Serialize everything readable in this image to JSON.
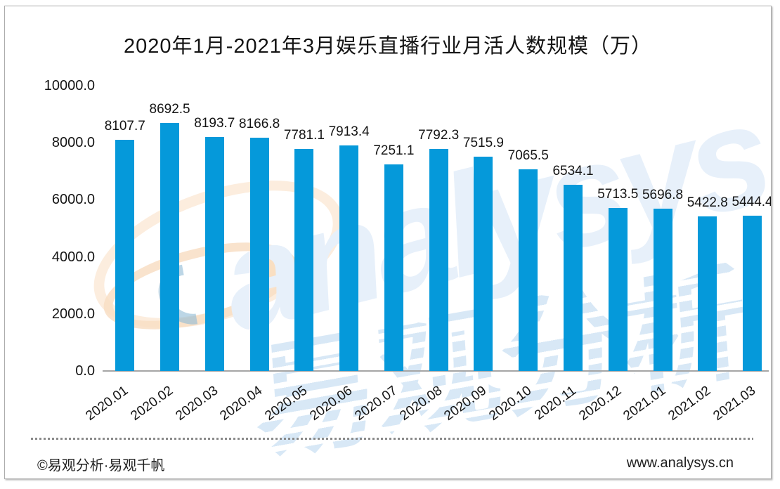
{
  "chart_data": {
    "type": "bar",
    "title": "2020年1月-2021年3月娱乐直播行业月活人数规模（万）",
    "categories": [
      "2020.01",
      "2020.02",
      "2020.03",
      "2020.04",
      "2020.05",
      "2020.06",
      "2020.07",
      "2020.08",
      "2020.09",
      "2020.10",
      "2020.11",
      "2020.12",
      "2021.01",
      "2021.02",
      "2021.03"
    ],
    "values": [
      8107.7,
      8692.5,
      8193.7,
      8166.8,
      7781.1,
      7913.4,
      7251.1,
      7792.3,
      7515.9,
      7065.5,
      6534.1,
      5713.5,
      5696.8,
      5422.8,
      5444.4
    ],
    "xlabel": "",
    "ylabel": "",
    "ylim": [
      0,
      10000
    ],
    "ytick_interval": 2000,
    "ytick_labels": [
      "0.0",
      "2000.0",
      "4000.0",
      "6000.0",
      "8000.0",
      "10000.0"
    ],
    "grid": false,
    "legend": "none",
    "value_labels_shown": true
  },
  "footer": {
    "left": "©易观分析·易观千帆",
    "right": "www.analysys.cn"
  },
  "watermark": {
    "script_text": "analysys",
    "cn_text": "易观分析",
    "logo": "analysys-swirl-logo"
  },
  "colors": {
    "bar": "#0599DA",
    "axis_line": "#A6A6A6",
    "card_border": "#ACACAC",
    "text": "#141414",
    "watermark_blue": "#DCE9F6",
    "watermark_orange": "#F8DEC4",
    "dotted_separator": "#8A8A8A"
  }
}
